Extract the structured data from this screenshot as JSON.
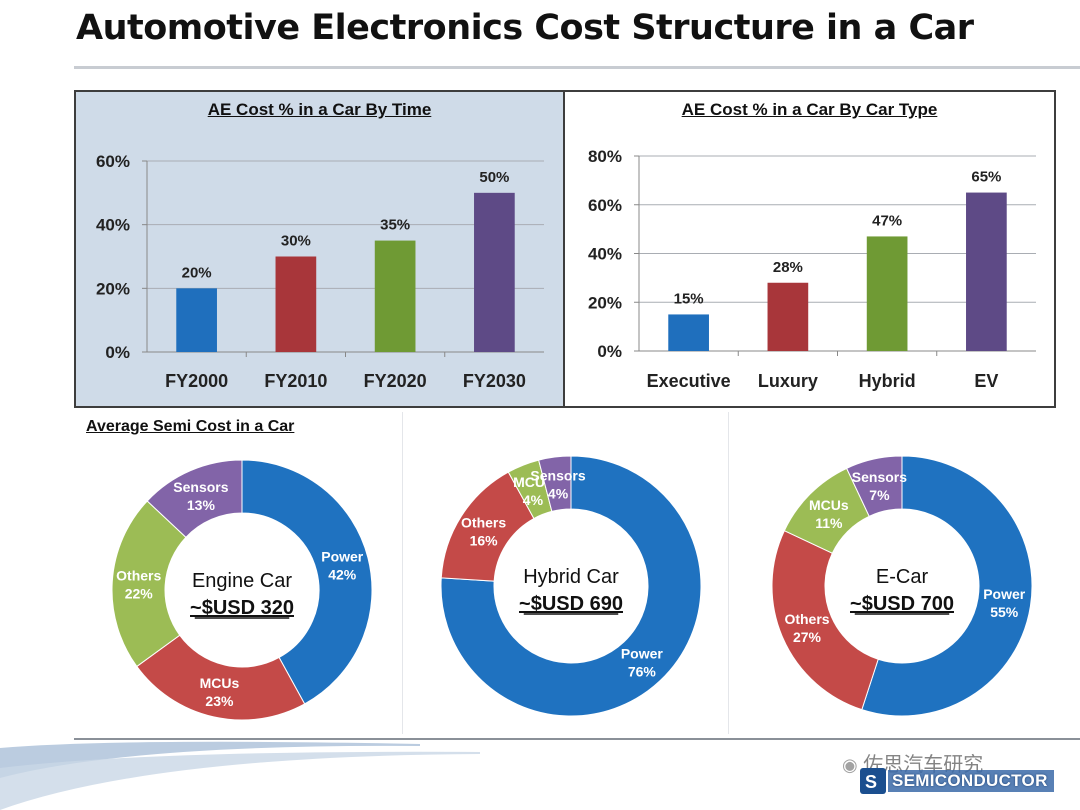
{
  "page": {
    "title": "Automotive Electronics Cost Structure in a Car"
  },
  "semi_section": {
    "title": "Average Semi Cost in a Car"
  },
  "watermark": {
    "text": "佐思汽车研究",
    "logo_text": "SEMICONDUCTOR"
  },
  "colors": {
    "blue": "#1f6fbd",
    "red": "#b23a38",
    "green": "#6f9a34",
    "purple": "#5e4a86",
    "pie_blue": "#1f72c0",
    "pie_red": "#c44a48",
    "pie_green": "#9cbc55",
    "pie_purple": "#8264a8"
  },
  "chart_data": [
    {
      "type": "bar",
      "title": "AE Cost % in a Car By Time",
      "categories": [
        "FY2000",
        "FY2010",
        "FY2020",
        "FY2030"
      ],
      "values": [
        20,
        30,
        35,
        50
      ],
      "data_labels": [
        "20%",
        "30%",
        "35%",
        "50%"
      ],
      "bar_colors": [
        "#1f6fbd",
        "#a8363a",
        "#6f9a34",
        "#5e4a86"
      ],
      "yticks": [
        0,
        20,
        40,
        60
      ],
      "ytick_labels": [
        "0%",
        "20%",
        "40%",
        "60%"
      ],
      "ylim": [
        0,
        60
      ],
      "grid": true,
      "xlabel": "",
      "ylabel": ""
    },
    {
      "type": "bar",
      "title": "AE Cost % in a Car By Car Type",
      "categories": [
        "Executive",
        "Luxury",
        "Hybrid",
        "EV"
      ],
      "values": [
        15,
        28,
        47,
        65
      ],
      "data_labels": [
        "15%",
        "28%",
        "47%",
        "65%"
      ],
      "bar_colors": [
        "#1f6fbd",
        "#a8363a",
        "#6f9a34",
        "#5e4a86"
      ],
      "yticks": [
        0,
        20,
        40,
        60,
        80
      ],
      "ytick_labels": [
        "0%",
        "20%",
        "40%",
        "60%",
        "80%"
      ],
      "ylim": [
        0,
        80
      ],
      "grid": true,
      "xlabel": "",
      "ylabel": ""
    },
    {
      "type": "pie",
      "variant": "donut",
      "center_title": "Engine Car",
      "center_value": "~$USD 320",
      "slices": [
        {
          "label": "Power",
          "value": 42,
          "value_label": "42%",
          "color": "#1f72c0"
        },
        {
          "label": "MCUs",
          "value": 23,
          "value_label": "23%",
          "color": "#c44a48"
        },
        {
          "label": "Others",
          "value": 22,
          "value_label": "22%",
          "color": "#9cbc55"
        },
        {
          "label": "Sensors",
          "value": 13,
          "value_label": "13%",
          "color": "#8264a8"
        }
      ]
    },
    {
      "type": "pie",
      "variant": "donut",
      "center_title": "Hybrid Car",
      "center_value": "~$USD 690",
      "slices": [
        {
          "label": "Power",
          "value": 76,
          "value_label": "76%",
          "color": "#1f72c0"
        },
        {
          "label": "Others",
          "value": 16,
          "value_label": "16%",
          "color": "#c44a48"
        },
        {
          "label": "MCUs",
          "value": 4,
          "value_label": "4%",
          "color": "#9cbc55"
        },
        {
          "label": "Sensors",
          "value": 4,
          "value_label": "4%",
          "color": "#8264a8"
        }
      ]
    },
    {
      "type": "pie",
      "variant": "donut",
      "center_title": "E-Car",
      "center_value": "~$USD 700",
      "slices": [
        {
          "label": "Power",
          "value": 55,
          "value_label": "55%",
          "color": "#1f72c0"
        },
        {
          "label": "Others",
          "value": 27,
          "value_label": "27%",
          "color": "#c44a48"
        },
        {
          "label": "MCUs",
          "value": 11,
          "value_label": "11%",
          "color": "#9cbc55"
        },
        {
          "label": "Sensors",
          "value": 7,
          "value_label": "7%",
          "color": "#8264a8"
        }
      ]
    }
  ]
}
